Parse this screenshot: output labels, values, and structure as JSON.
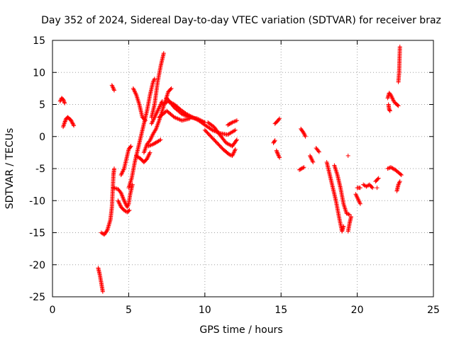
{
  "chart_data": {
    "type": "scatter",
    "title": "Day 352 of 2024, Sidereal Day-to-day VTEC variation (SDTVAR) for receiver braz",
    "xlabel": "GPS time / hours",
    "ylabel": "SDTVAR / TECUs",
    "xlim": [
      0,
      25
    ],
    "ylim": [
      -25,
      15
    ],
    "xticks": [
      0,
      5,
      10,
      15,
      20,
      25
    ],
    "yticks": [
      -25,
      -20,
      -15,
      -10,
      -5,
      0,
      5,
      10,
      15
    ],
    "grid": true,
    "marker": "+",
    "color": "#ff0000",
    "segments": [
      [
        [
          0.5,
          5.5
        ],
        [
          0.6,
          6.0
        ],
        [
          0.7,
          5.8
        ],
        [
          0.8,
          5.2
        ]
      ],
      [
        [
          0.7,
          1.5
        ],
        [
          0.8,
          2.2
        ],
        [
          0.9,
          2.8
        ],
        [
          1.0,
          3.0
        ],
        [
          1.1,
          2.8
        ],
        [
          1.2,
          2.6
        ],
        [
          1.4,
          1.7
        ]
      ],
      [
        [
          3.0,
          -20.5
        ],
        [
          3.1,
          -21.5
        ],
        [
          3.2,
          -22.8
        ],
        [
          3.3,
          -24.2
        ]
      ],
      [
        [
          3.2,
          -15.0
        ],
        [
          3.4,
          -15.3
        ],
        [
          3.6,
          -14.6
        ],
        [
          3.8,
          -13.0
        ],
        [
          3.9,
          -11.0
        ],
        [
          3.95,
          -8.5
        ],
        [
          4.0,
          -6.0
        ],
        [
          4.05,
          -5.0
        ]
      ],
      [
        [
          3.9,
          8.0
        ],
        [
          4.0,
          7.5
        ],
        [
          4.05,
          7.2
        ]
      ],
      [
        [
          4.0,
          -8.0
        ],
        [
          4.3,
          -8.2
        ],
        [
          4.5,
          -8.8
        ],
        [
          4.7,
          -10.0
        ],
        [
          4.9,
          -11.0
        ],
        [
          5.0,
          -10.5
        ],
        [
          5.1,
          -9.0
        ],
        [
          5.25,
          -7.5
        ]
      ],
      [
        [
          4.3,
          -10.0
        ],
        [
          4.5,
          -11.0
        ],
        [
          4.7,
          -11.5
        ],
        [
          4.9,
          -11.8
        ],
        [
          5.05,
          -11.5
        ]
      ],
      [
        [
          4.5,
          -6.0
        ],
        [
          4.7,
          -5.0
        ],
        [
          4.85,
          -3.5
        ],
        [
          5.0,
          -2.0
        ],
        [
          5.15,
          -1.5
        ]
      ],
      [
        [
          5.0,
          -8.0
        ],
        [
          5.2,
          -6.5
        ],
        [
          5.4,
          -4.0
        ],
        [
          5.6,
          -2.0
        ],
        [
          5.8,
          0.0
        ],
        [
          6.0,
          2.0
        ],
        [
          6.2,
          4.0
        ],
        [
          6.4,
          6.5
        ],
        [
          6.6,
          8.5
        ],
        [
          6.7,
          9.0
        ]
      ],
      [
        [
          5.3,
          7.5
        ],
        [
          5.5,
          6.5
        ],
        [
          5.7,
          5.0
        ],
        [
          5.9,
          3.0
        ],
        [
          6.1,
          2.5
        ]
      ],
      [
        [
          5.5,
          -3.0
        ],
        [
          5.8,
          -3.5
        ],
        [
          6.0,
          -4.0
        ],
        [
          6.2,
          -3.5
        ],
        [
          6.4,
          -2.5
        ]
      ],
      [
        [
          6.0,
          -2.5
        ],
        [
          6.2,
          -1.2
        ],
        [
          6.4,
          -0.6
        ],
        [
          6.6,
          0.4
        ],
        [
          6.8,
          1.2
        ],
        [
          7.0,
          2.5
        ],
        [
          7.2,
          4.0
        ],
        [
          7.4,
          5.5
        ],
        [
          7.6,
          7.0
        ],
        [
          7.8,
          7.5
        ]
      ],
      [
        [
          6.3,
          -1.5
        ],
        [
          6.6,
          -1.2
        ],
        [
          6.9,
          -0.8
        ],
        [
          7.1,
          -0.5
        ]
      ],
      [
        [
          6.5,
          3.0
        ],
        [
          6.7,
          5.0
        ],
        [
          6.9,
          8.5
        ],
        [
          7.1,
          11.0
        ],
        [
          7.3,
          13.0
        ]
      ],
      [
        [
          6.5,
          2.0
        ],
        [
          6.8,
          3.5
        ],
        [
          7.0,
          4.5
        ],
        [
          7.2,
          5.5
        ]
      ],
      [
        [
          7.2,
          5.0
        ],
        [
          7.6,
          5.5
        ],
        [
          8.0,
          5.0
        ],
        [
          8.4,
          4.2
        ],
        [
          8.8,
          3.5
        ],
        [
          9.2,
          3.0
        ],
        [
          9.6,
          2.5
        ],
        [
          10.0,
          1.8
        ],
        [
          10.5,
          1.0
        ],
        [
          11.0,
          0.5
        ],
        [
          11.5,
          0.3
        ],
        [
          12.0,
          1.0
        ]
      ],
      [
        [
          7.5,
          6.0
        ],
        [
          8.0,
          4.5
        ],
        [
          8.5,
          3.5
        ],
        [
          9.0,
          3.0
        ],
        [
          9.5,
          2.8
        ],
        [
          10.0,
          2.2
        ]
      ],
      [
        [
          7.0,
          3.0
        ],
        [
          7.5,
          4.0
        ],
        [
          8.0,
          3.0
        ],
        [
          8.5,
          2.5
        ],
        [
          9.0,
          2.8
        ]
      ],
      [
        [
          10.0,
          1.0
        ],
        [
          10.4,
          0.0
        ],
        [
          10.8,
          -1.0
        ],
        [
          11.2,
          -2.0
        ],
        [
          11.6,
          -2.8
        ],
        [
          11.8,
          -3.0
        ],
        [
          12.0,
          -2.0
        ]
      ],
      [
        [
          10.2,
          2.2
        ],
        [
          10.6,
          1.5
        ],
        [
          11.0,
          0.2
        ],
        [
          11.4,
          -1.0
        ],
        [
          11.8,
          -1.5
        ],
        [
          12.1,
          -0.5
        ]
      ],
      [
        [
          11.5,
          1.8
        ],
        [
          11.8,
          2.2
        ],
        [
          12.1,
          2.5
        ]
      ],
      [
        [
          14.6,
          2.0
        ],
        [
          14.8,
          2.5
        ],
        [
          14.9,
          2.8
        ]
      ],
      [
        [
          14.7,
          -2.2
        ],
        [
          14.8,
          -2.8
        ],
        [
          14.9,
          -3.3
        ]
      ],
      [
        [
          14.5,
          -1.0
        ],
        [
          14.6,
          -0.6
        ]
      ],
      [
        [
          16.3,
          1.2
        ],
        [
          16.5,
          0.5
        ],
        [
          16.6,
          0.0
        ]
      ],
      [
        [
          16.2,
          -5.2
        ],
        [
          16.5,
          -4.8
        ]
      ],
      [
        [
          16.9,
          -3.0
        ],
        [
          17.1,
          -4.0
        ]
      ],
      [
        [
          17.3,
          -1.8
        ],
        [
          17.5,
          -2.4
        ]
      ],
      [
        [
          18.0,
          -4.0
        ],
        [
          18.2,
          -6.0
        ],
        [
          18.4,
          -8.0
        ],
        [
          18.6,
          -10.0
        ],
        [
          18.8,
          -12.5
        ],
        [
          19.0,
          -14.8
        ],
        [
          19.1,
          -14.0
        ]
      ],
      [
        [
          18.5,
          -4.5
        ],
        [
          18.7,
          -6.0
        ],
        [
          18.9,
          -8.0
        ],
        [
          19.1,
          -10.5
        ],
        [
          19.3,
          -12.0
        ],
        [
          19.5,
          -12.2
        ]
      ],
      [
        [
          19.4,
          -14.8
        ],
        [
          19.5,
          -13.5
        ],
        [
          19.6,
          -12.5
        ]
      ],
      [
        [
          19.4,
          -3.0
        ]
      ],
      [
        [
          19.9,
          -9.0
        ],
        [
          20.1,
          -10.0
        ],
        [
          20.2,
          -10.5
        ]
      ],
      [
        [
          20.0,
          -8.0
        ],
        [
          20.2,
          -8.0
        ]
      ],
      [
        [
          20.4,
          -7.5
        ],
        [
          20.6,
          -7.8
        ],
        [
          20.8,
          -7.5
        ],
        [
          21.0,
          -8.0
        ]
      ],
      [
        [
          21.2,
          -7.0
        ],
        [
          21.4,
          -6.5
        ]
      ],
      [
        [
          21.3,
          -8.0
        ]
      ],
      [
        [
          22.0,
          -5.0
        ],
        [
          22.2,
          -4.8
        ],
        [
          22.5,
          -5.2
        ],
        [
          22.8,
          -5.8
        ],
        [
          22.9,
          -6.0
        ]
      ],
      [
        [
          22.0,
          6.0
        ],
        [
          22.1,
          6.8
        ],
        [
          22.2,
          6.5
        ],
        [
          22.3,
          6.0
        ],
        [
          22.4,
          5.5
        ],
        [
          22.5,
          5.2
        ],
        [
          22.6,
          5.0
        ],
        [
          22.7,
          4.8
        ]
      ],
      [
        [
          22.05,
          5.0
        ],
        [
          22.1,
          4.2
        ],
        [
          22.15,
          4.0
        ]
      ],
      [
        [
          22.7,
          8.5
        ],
        [
          22.75,
          10.0
        ],
        [
          22.8,
          14.0
        ]
      ],
      [
        [
          22.6,
          -8.5
        ],
        [
          22.7,
          -7.5
        ],
        [
          22.8,
          -7.0
        ]
      ]
    ]
  }
}
